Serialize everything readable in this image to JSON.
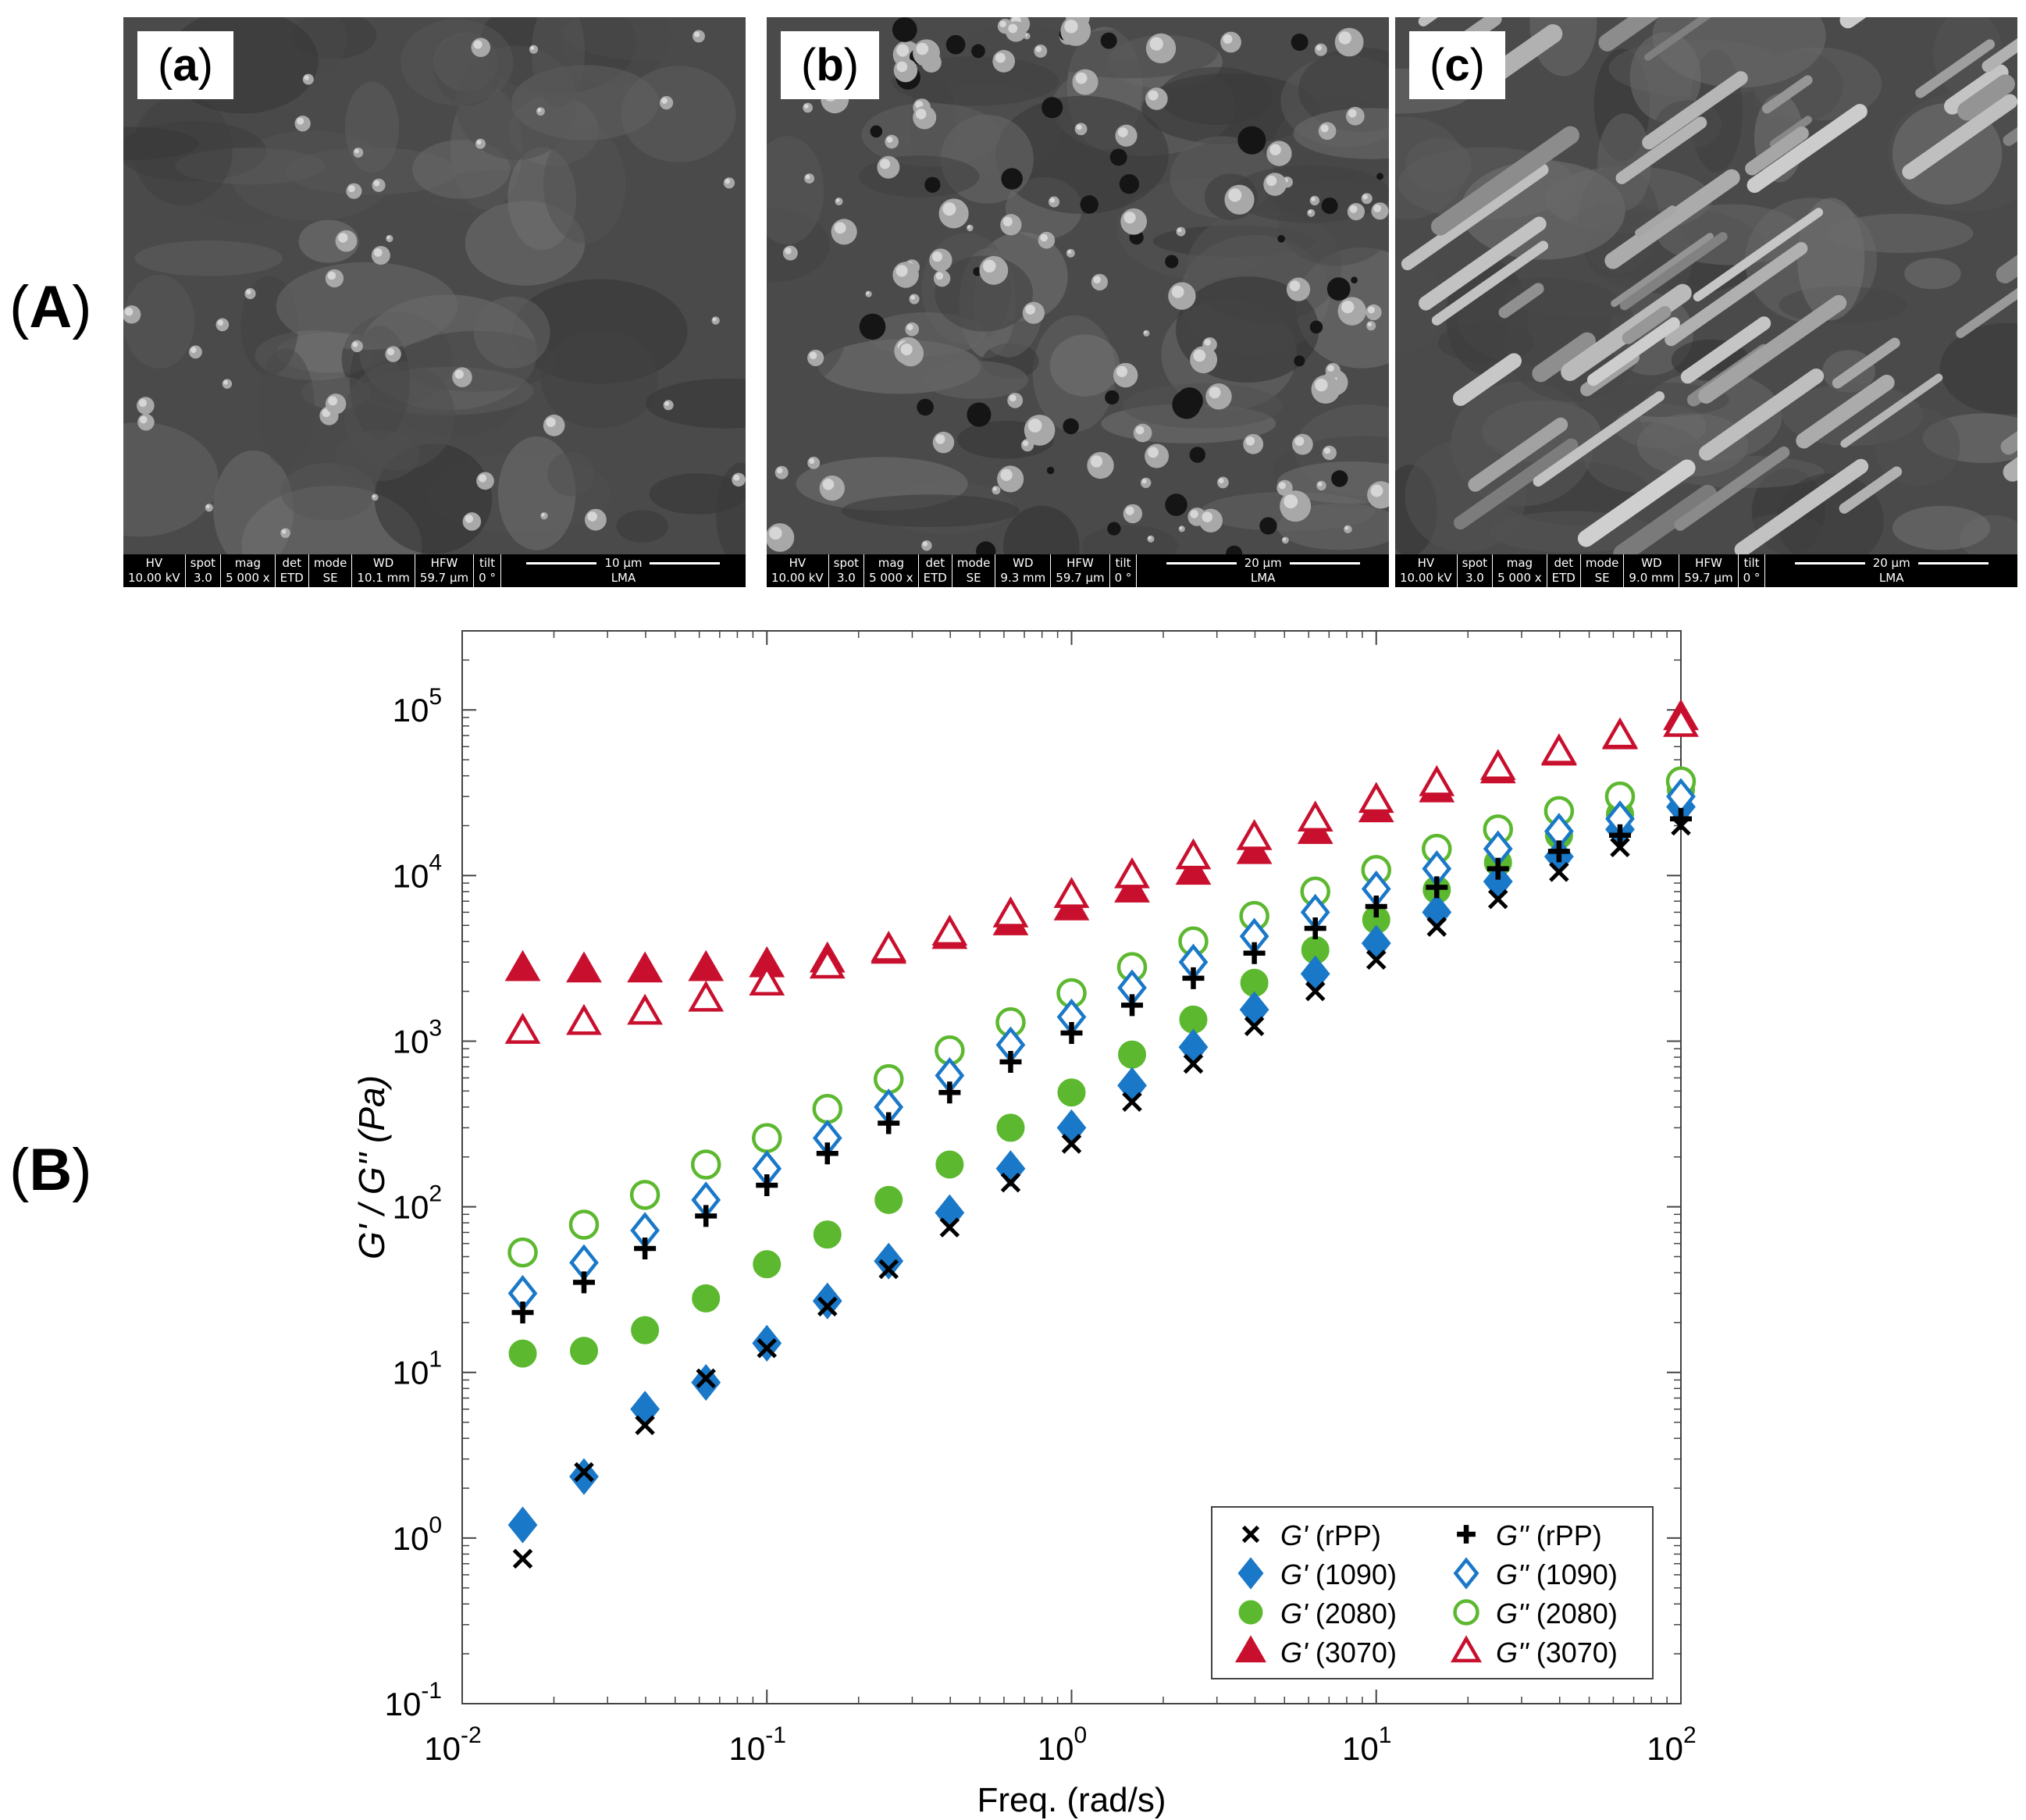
{
  "labels": {
    "section_a": "A",
    "section_b": "B"
  },
  "panels": [
    {
      "tag": "a",
      "bar": {
        "hv": [
          "HV",
          "10.00 kV"
        ],
        "spot": [
          "spot",
          "3.0"
        ],
        "mag": [
          "mag",
          "5 000 x"
        ],
        "det": [
          "det",
          "ETD"
        ],
        "mode": [
          "mode",
          "SE"
        ],
        "wd": [
          "WD",
          "10.1 mm"
        ],
        "hfw": [
          "HFW",
          "59.7 µm"
        ],
        "tilt": [
          "tilt",
          "0 °"
        ],
        "scale": "10 µm",
        "org": "LMA"
      }
    },
    {
      "tag": "b",
      "bar": {
        "hv": [
          "HV",
          "10.00 kV"
        ],
        "spot": [
          "spot",
          "3.0"
        ],
        "mag": [
          "mag",
          "5 000 x"
        ],
        "det": [
          "det",
          "ETD"
        ],
        "mode": [
          "mode",
          "SE"
        ],
        "wd": [
          "WD",
          "9.3 mm"
        ],
        "hfw": [
          "HFW",
          "59.7 µm"
        ],
        "tilt": [
          "tilt",
          "0 °"
        ],
        "scale": "20 µm",
        "org": "LMA"
      }
    },
    {
      "tag": "c",
      "bar": {
        "hv": [
          "HV",
          "10.00 kV"
        ],
        "spot": [
          "spot",
          "3.0"
        ],
        "mag": [
          "mag",
          "5 000 x"
        ],
        "det": [
          "det",
          "ETD"
        ],
        "mode": [
          "mode",
          "SE"
        ],
        "wd": [
          "WD",
          "9.0 mm"
        ],
        "hfw": [
          "HFW",
          "59.7 µm"
        ],
        "tilt": [
          "tilt",
          "0 °"
        ],
        "scale": "20 µm",
        "org": "LMA"
      }
    }
  ],
  "chart_data": {
    "type": "scatter",
    "xscale": "log",
    "yscale": "log",
    "xlim": [
      0.01,
      100
    ],
    "ylim": [
      0.1,
      300000
    ],
    "xlabel": "Freq. (rad/s)",
    "ylabel": "G' / G'' (Pa)",
    "x_ticks": [
      {
        "base": "10",
        "exp": "-2"
      },
      {
        "base": "10",
        "exp": "-1"
      },
      {
        "base": "10",
        "exp": "0"
      },
      {
        "base": "10",
        "exp": "1"
      },
      {
        "base": "10",
        "exp": "2"
      }
    ],
    "y_ticks": [
      {
        "base": "10",
        "exp": "-1"
      },
      {
        "base": "10",
        "exp": "0"
      },
      {
        "base": "10",
        "exp": "1"
      },
      {
        "base": "10",
        "exp": "2"
      },
      {
        "base": "10",
        "exp": "3"
      },
      {
        "base": "10",
        "exp": "4"
      },
      {
        "base": "10",
        "exp": "5"
      }
    ],
    "legend_position": "bottom-right",
    "x": [
      0.0158,
      0.0251,
      0.0398,
      0.0631,
      0.1,
      0.158,
      0.251,
      0.398,
      0.631,
      1.0,
      1.58,
      2.51,
      3.98,
      6.31,
      10,
      15.8,
      25.1,
      39.8,
      63.1,
      100
    ],
    "series": [
      {
        "name": "G' (rPP)",
        "symbol": "G'",
        "sample": "rPP",
        "marker": "x",
        "color": "#000000",
        "values": [
          0.75,
          2.5,
          4.8,
          9.2,
          14,
          25,
          42,
          75,
          140,
          240,
          430,
          730,
          1230,
          2000,
          3100,
          4900,
          7200,
          10500,
          14800,
          20000
        ]
      },
      {
        "name": "G'' (rPP)",
        "symbol": "G''",
        "sample": "rPP",
        "marker": "plus",
        "color": "#000000",
        "values": [
          23,
          35,
          56,
          88,
          135,
          210,
          320,
          490,
          750,
          1120,
          1650,
          2400,
          3400,
          4800,
          6500,
          8500,
          11000,
          14000,
          17500,
          22000
        ]
      },
      {
        "name": "G' (1090)",
        "symbol": "G'",
        "sample": "1090",
        "marker": "filled-diamond",
        "color": "#1a78c8",
        "values": [
          1.2,
          2.35,
          6.0,
          8.7,
          15,
          27,
          47,
          92,
          170,
          300,
          540,
          920,
          1550,
          2550,
          3900,
          6000,
          9200,
          13000,
          19000,
          26000
        ]
      },
      {
        "name": "G'' (1090)",
        "symbol": "G''",
        "sample": "1090",
        "marker": "open-diamond",
        "color": "#1a78c8",
        "values": [
          30,
          46,
          72,
          110,
          170,
          260,
          400,
          620,
          950,
          1400,
          2100,
          3000,
          4300,
          6000,
          8300,
          11000,
          14500,
          18500,
          22000,
          30000
        ]
      },
      {
        "name": "G' (2080)",
        "symbol": "G'",
        "sample": "2080",
        "marker": "filled-circle",
        "color": "#5cb82e",
        "values": [
          13,
          13.5,
          18,
          28,
          45,
          68,
          110,
          180,
          300,
          490,
          830,
          1350,
          2250,
          3550,
          5400,
          8200,
          12000,
          17500,
          23500,
          33000
        ]
      },
      {
        "name": "G'' (2080)",
        "symbol": "G''",
        "sample": "2080",
        "marker": "open-circle",
        "color": "#5cb82e",
        "values": [
          53,
          78,
          118,
          180,
          260,
          390,
          590,
          880,
          1300,
          1950,
          2800,
          4000,
          5700,
          8000,
          10800,
          14500,
          19000,
          24500,
          30000,
          37000
        ]
      },
      {
        "name": "G' (3070)",
        "symbol": "G'",
        "sample": "3070",
        "marker": "filled-triangle",
        "color": "#c8102e",
        "values": [
          2750,
          2700,
          2700,
          2750,
          2900,
          3100,
          3500,
          4300,
          5200,
          6400,
          8200,
          10500,
          14000,
          18500,
          25000,
          33000,
          43000,
          55000,
          69000,
          90000
        ]
      },
      {
        "name": "G'' (3070)",
        "symbol": "G''",
        "sample": "3070",
        "marker": "open-triangle",
        "color": "#c8102e",
        "values": [
          1150,
          1300,
          1500,
          1800,
          2250,
          2850,
          3600,
          4500,
          5800,
          7600,
          10000,
          13000,
          17000,
          22000,
          28500,
          36000,
          45000,
          56000,
          70000,
          82000
        ]
      }
    ]
  }
}
